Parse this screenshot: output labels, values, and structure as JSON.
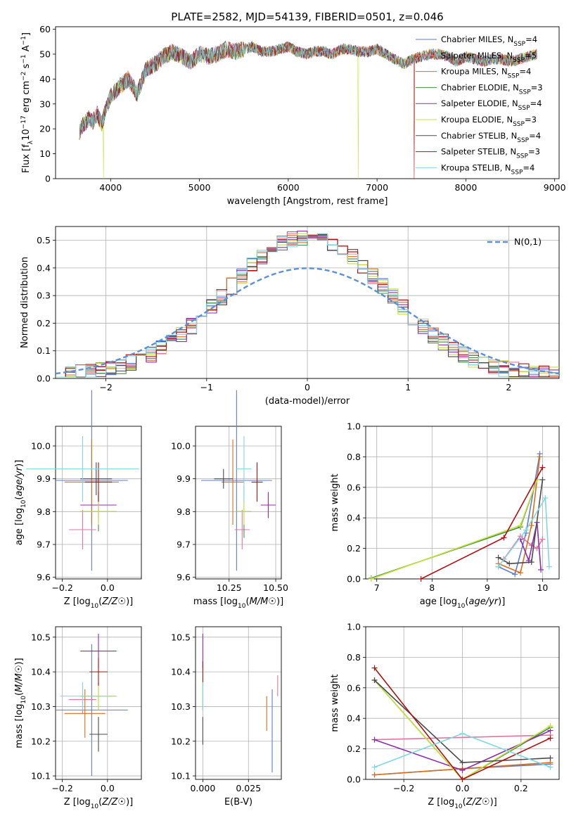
{
  "figure": {
    "title": "PLATE=2582, MJD=54139, FIBERID=0501, z=0.046"
  },
  "models": [
    {
      "name": "Chabrier MILES",
      "nssp": 4,
      "color": "#5b7fcf"
    },
    {
      "name": "Salpeter MILES",
      "nssp": 5,
      "color": "#e5749f"
    },
    {
      "name": "Kroupa MILES",
      "nssp": 4,
      "color": "#d96d1c"
    },
    {
      "name": "Chabrier ELODIE",
      "nssp": 3,
      "color": "#3f8f48"
    },
    {
      "name": "Salpeter ELODIE",
      "nssp": 4,
      "color": "#8e2bb0"
    },
    {
      "name": "Kroupa ELODIE",
      "nssp": 3,
      "color": "#c8e03a"
    },
    {
      "name": "Chabrier STELIB",
      "nssp": 4,
      "color": "#4a4a4a"
    },
    {
      "name": "Salpeter STELIB",
      "nssp": 3,
      "color": "#b01010"
    },
    {
      "name": "Kroupa STELIB",
      "nssp": 4,
      "color": "#7fd8e0"
    }
  ],
  "chart_data": [
    {
      "id": "spectrum",
      "type": "line",
      "xlabel": "wavelength [Angstrom, rest frame]",
      "ylabel": "Flux [f_λ 10^-17 erg cm^-2 s^-1 A^-1]",
      "xlim": [
        3380,
        9050
      ],
      "ylim": [
        0,
        61
      ],
      "xticks": [
        4000,
        5000,
        6000,
        7000,
        8000,
        9000
      ],
      "yticks": [
        0,
        10,
        20,
        30,
        40,
        50,
        60
      ],
      "grid": false,
      "legend": "upper-right",
      "x": [
        3650,
        3700,
        3750,
        3800,
        3850,
        3900,
        3950,
        4000,
        4100,
        4200,
        4300,
        4400,
        4500,
        4600,
        4700,
        4800,
        4900,
        5000,
        5100,
        5200,
        5300,
        5400,
        5500,
        5600,
        5700,
        5800,
        5900,
        6000,
        6100,
        6200,
        6300,
        6400,
        6500,
        6600,
        6700,
        6800,
        6900,
        7000,
        7100,
        7200,
        7300,
        7400,
        7500,
        7600,
        7700,
        7800,
        7900,
        8000,
        8100,
        8200,
        8300,
        8400,
        8500,
        8600,
        8700,
        8800
      ],
      "y": [
        19,
        22,
        24,
        23,
        26,
        22,
        28,
        33,
        37,
        40,
        34,
        44,
        46,
        49,
        51,
        49,
        47,
        50,
        49,
        50,
        52,
        51,
        52,
        53,
        51,
        51,
        52,
        53,
        51,
        50,
        51,
        51,
        50,
        52,
        52,
        51,
        51,
        52,
        50,
        48,
        46,
        48,
        49,
        50,
        50,
        49,
        47,
        49,
        48,
        47,
        48,
        48,
        47,
        48,
        49,
        50
      ],
      "dropouts": [
        {
          "model": "Kroupa ELODIE",
          "x": 3920
        },
        {
          "model": "Kroupa ELODIE",
          "x": 6790
        },
        {
          "model": "Salpeter STELIB",
          "x": 7420
        }
      ]
    },
    {
      "id": "residuals",
      "type": "step-histogram",
      "xlabel": "(data-model)/error",
      "ylabel": "Normed distribution",
      "xlim": [
        -2.5,
        2.5
      ],
      "ylim": [
        0,
        0.55
      ],
      "xticks": [
        -2,
        -1,
        0,
        1,
        2
      ],
      "yticks": [
        0.0,
        0.1,
        0.2,
        0.3,
        0.4,
        0.5
      ],
      "grid": true,
      "legend": "upper-right",
      "reference_label": "N(0,1)",
      "reference_color": "#5b8fd6",
      "bin_edges_start": -2.5,
      "bin_width": 0.1
    },
    {
      "id": "age-vs-Z",
      "type": "errorbar",
      "xlabel": "Z [log10(Z/Z☉)]",
      "ylabel": "age [log10(age/yr)]",
      "xlim": [
        -0.23,
        0.15
      ],
      "ylim": [
        9.595,
        10.06
      ],
      "xticks": [
        -0.2,
        0.0
      ],
      "yticks": [
        9.6,
        9.7,
        9.8,
        9.9,
        10.0
      ],
      "points": [
        {
          "model": "Chabrier MILES",
          "x": -0.07,
          "xerr": 0.16,
          "y": 9.895,
          "yerr": 0.275
        },
        {
          "model": "Salpeter MILES",
          "x": -0.11,
          "xerr": 0.06,
          "y": 9.745,
          "yerr": 0.06
        },
        {
          "model": "Kroupa MILES",
          "x": -0.07,
          "xerr": 0.12,
          "y": 9.89,
          "yerr": 0.13
        },
        {
          "model": "Chabrier ELODIE",
          "x": -0.04,
          "xerr": 0.08,
          "y": 9.8,
          "yerr": 0.06
        },
        {
          "model": "Salpeter ELODIE",
          "x": -0.04,
          "xerr": 0.08,
          "y": 9.82,
          "yerr": 0.04
        },
        {
          "model": "Kroupa ELODIE",
          "x": -0.04,
          "xerr": 0.08,
          "y": 9.8,
          "yerr": 0.04
        },
        {
          "model": "Chabrier STELIB",
          "x": -0.05,
          "xerr": 0.07,
          "y": 9.9,
          "yerr": 0.05
        },
        {
          "model": "Salpeter STELIB",
          "x": -0.04,
          "xerr": 0.06,
          "y": 9.89,
          "yerr": 0.06
        },
        {
          "model": "Kroupa STELIB",
          "x": -0.11,
          "xerr": 0.25,
          "y": 9.93,
          "yerr": 0.1
        }
      ]
    },
    {
      "id": "age-vs-mass",
      "type": "errorbar",
      "xlabel": "mass [log10(M/M☉)]",
      "ylabel": "",
      "xlim": [
        10.07,
        10.53
      ],
      "ylim": [
        9.595,
        10.06
      ],
      "xticks": [
        10.25,
        10.5
      ],
      "yticks": [
        9.6,
        9.7,
        9.8,
        9.9,
        10.0
      ],
      "points": [
        {
          "model": "Chabrier MILES",
          "x": 10.29,
          "xerr": 0.19,
          "y": 9.895,
          "yerr": 0.275
        },
        {
          "model": "Salpeter MILES",
          "x": 10.32,
          "xerr": 0.04,
          "y": 9.745,
          "yerr": 0.06
        },
        {
          "model": "Kroupa MILES",
          "x": 10.27,
          "xerr": 0.06,
          "y": 9.89,
          "yerr": 0.13
        },
        {
          "model": "Chabrier ELODIE",
          "x": 10.33,
          "xerr": 0.04,
          "y": 9.8,
          "yerr": 0.08
        },
        {
          "model": "Salpeter ELODIE",
          "x": 10.46,
          "xerr": 0.04,
          "y": 9.82,
          "yerr": 0.04
        },
        {
          "model": "Kroupa ELODIE",
          "x": 10.33,
          "xerr": 0.04,
          "y": 9.8,
          "yerr": 0.04
        },
        {
          "model": "Chabrier STELIB",
          "x": 10.22,
          "xerr": 0.05,
          "y": 9.9,
          "yerr": 0.03
        },
        {
          "model": "Salpeter STELIB",
          "x": 10.4,
          "xerr": 0.03,
          "y": 9.89,
          "yerr": 0.06
        },
        {
          "model": "Kroupa STELIB",
          "x": 10.33,
          "xerr": 0.04,
          "y": 9.93,
          "yerr": 0.1
        }
      ]
    },
    {
      "id": "weight-vs-age",
      "type": "line",
      "xlabel": "age [log10(age/yr)]",
      "ylabel": "mass weight",
      "xlim": [
        6.8,
        10.3
      ],
      "ylim": [
        0,
        1.0
      ],
      "xticks": [
        7,
        8,
        9,
        10
      ],
      "yticks": [
        0.0,
        0.2,
        0.4,
        0.6,
        0.8,
        1.0
      ],
      "grid": true,
      "series": [
        {
          "model": "Chabrier MILES",
          "x": [
            9.2,
            9.5,
            9.7,
            9.95
          ],
          "y": [
            0.08,
            0.03,
            0.3,
            0.82
          ]
        },
        {
          "model": "Salpeter MILES",
          "x": [
            9.3,
            9.6,
            9.8,
            9.9,
            10.0
          ],
          "y": [
            0.13,
            0.28,
            0.22,
            0.2,
            0.26
          ]
        },
        {
          "model": "Kroupa MILES",
          "x": [
            9.2,
            9.6,
            9.8,
            9.95
          ],
          "y": [
            0.1,
            0.04,
            0.35,
            0.8
          ]
        },
        {
          "model": "Chabrier ELODIE",
          "x": [
            6.9,
            9.6,
            9.9
          ],
          "y": [
            0.005,
            0.34,
            0.65
          ]
        },
        {
          "model": "Salpeter ELODIE",
          "x": [
            9.6,
            9.75,
            9.9,
            9.97
          ],
          "y": [
            0.26,
            0.12,
            0.37,
            0.06
          ]
        },
        {
          "model": "Kroupa ELODIE",
          "x": [
            6.9,
            9.6,
            9.9
          ],
          "y": [
            0.0,
            0.35,
            0.65
          ]
        },
        {
          "model": "Chabrier STELIB",
          "x": [
            9.2,
            9.4,
            9.8,
            10.0
          ],
          "y": [
            0.14,
            0.1,
            0.11,
            0.65
          ]
        },
        {
          "model": "Salpeter STELIB",
          "x": [
            7.8,
            9.3,
            10.0
          ],
          "y": [
            0.0,
            0.27,
            0.73
          ]
        },
        {
          "model": "Kroupa STELIB",
          "x": [
            9.2,
            9.7,
            10.05,
            10.12
          ],
          "y": [
            0.08,
            0.32,
            0.53,
            0.08
          ]
        }
      ]
    },
    {
      "id": "mass-vs-Z",
      "type": "errorbar",
      "xlabel": "Z [log10(Z/Z☉)]",
      "ylabel": "mass [log10(M/M☉)]",
      "xlim": [
        -0.23,
        0.15
      ],
      "ylim": [
        10.09,
        10.53
      ],
      "xticks": [
        -0.2,
        0.0
      ],
      "yticks": [
        10.1,
        10.2,
        10.3,
        10.4,
        10.5
      ],
      "points": [
        {
          "model": "Chabrier MILES",
          "x": -0.07,
          "xerr": 0.16,
          "y": 10.29,
          "yerr": 0.19
        },
        {
          "model": "Salpeter MILES",
          "x": -0.11,
          "xerr": 0.06,
          "y": 10.32,
          "yerr": 0.04
        },
        {
          "model": "Kroupa MILES",
          "x": -0.1,
          "xerr": 0.09,
          "y": 10.28,
          "yerr": 0.07
        },
        {
          "model": "Chabrier ELODIE",
          "x": -0.04,
          "xerr": 0.08,
          "y": 10.33,
          "yerr": 0.04
        },
        {
          "model": "Salpeter ELODIE",
          "x": -0.04,
          "xerr": 0.08,
          "y": 10.46,
          "yerr": 0.05
        },
        {
          "model": "Kroupa ELODIE",
          "x": -0.04,
          "xerr": 0.08,
          "y": 10.33,
          "yerr": 0.04
        },
        {
          "model": "Chabrier STELIB",
          "x": -0.04,
          "xerr": 0.04,
          "y": 10.22,
          "yerr": 0.05
        },
        {
          "model": "Salpeter STELIB",
          "x": -0.04,
          "xerr": 0.04,
          "y": 10.4,
          "yerr": 0.04
        },
        {
          "model": "Kroupa STELIB",
          "x": -0.11,
          "xerr": 0.1,
          "y": 10.33,
          "yerr": 0.04
        }
      ]
    },
    {
      "id": "mass-vs-ebv",
      "type": "errorbar",
      "xlabel": "E(B-V)",
      "ylabel": "",
      "xlim": [
        -0.004,
        0.043
      ],
      "ylim": [
        10.09,
        10.53
      ],
      "xticks": [
        0.0,
        0.025
      ],
      "yticks": [
        10.1,
        10.2,
        10.3,
        10.4,
        10.5
      ],
      "points": [
        {
          "model": "Chabrier MILES",
          "x": 0.038,
          "xerr": 0,
          "y": 10.23,
          "yerr": 0.12
        },
        {
          "model": "Salpeter MILES",
          "x": 0.041,
          "xerr": 0,
          "y": 10.36,
          "yerr": 0.03
        },
        {
          "model": "Kroupa MILES",
          "x": 0.035,
          "xerr": 0,
          "y": 10.28,
          "yerr": 0.05
        },
        {
          "model": "Chabrier ELODIE",
          "x": 0.0,
          "xerr": 0,
          "y": 10.33,
          "yerr": 0.04
        },
        {
          "model": "Salpeter ELODIE",
          "x": 0.0,
          "xerr": 0,
          "y": 10.46,
          "yerr": 0.05
        },
        {
          "model": "Kroupa ELODIE",
          "x": 0.0,
          "xerr": 0,
          "y": 10.33,
          "yerr": 0.04
        },
        {
          "model": "Chabrier STELIB",
          "x": 0.0,
          "xerr": 0,
          "y": 10.23,
          "yerr": 0.04
        },
        {
          "model": "Salpeter STELIB",
          "x": 0.0,
          "xerr": 0,
          "y": 10.4,
          "yerr": 0.03
        },
        {
          "model": "Kroupa STELIB",
          "x": 0.0,
          "xerr": 0,
          "y": 10.33,
          "yerr": 0.04
        }
      ]
    },
    {
      "id": "weight-vs-Z",
      "type": "line",
      "xlabel": "Z [log10(Z/Z☉)]",
      "ylabel": "mass weight",
      "xlim": [
        -0.33,
        0.33
      ],
      "ylim": [
        0,
        1.0
      ],
      "xticks": [
        -0.2,
        0.0,
        0.2
      ],
      "yticks": [
        0.0,
        0.2,
        0.4,
        0.6,
        0.8,
        1.0
      ],
      "grid": true,
      "series": [
        {
          "model": "Chabrier MILES",
          "x": [
            -0.3,
            0.0,
            0.3
          ],
          "y": [
            0.03,
            0.07,
            0.1
          ]
        },
        {
          "model": "Salpeter MILES",
          "x": [
            -0.3,
            0.3
          ],
          "y": [
            0.26,
            0.29
          ]
        },
        {
          "model": "Kroupa MILES",
          "x": [
            -0.3,
            0.0,
            0.3
          ],
          "y": [
            0.03,
            0.07,
            0.11
          ]
        },
        {
          "model": "Chabrier ELODIE",
          "x": [
            -0.3,
            0.0,
            0.3
          ],
          "y": [
            0.65,
            0.0,
            0.34
          ]
        },
        {
          "model": "Salpeter ELODIE",
          "x": [
            -0.3,
            0.0,
            0.3
          ],
          "y": [
            0.26,
            0.06,
            0.32
          ]
        },
        {
          "model": "Kroupa ELODIE",
          "x": [
            -0.3,
            0.0,
            0.3
          ],
          "y": [
            0.65,
            0.0,
            0.35
          ]
        },
        {
          "model": "Chabrier STELIB",
          "x": [
            -0.3,
            0.0,
            0.3
          ],
          "y": [
            0.65,
            0.11,
            0.14
          ]
        },
        {
          "model": "Salpeter STELIB",
          "x": [
            -0.3,
            0.0,
            0.3
          ],
          "y": [
            0.73,
            0.0,
            0.27
          ]
        },
        {
          "model": "Kroupa STELIB",
          "x": [
            -0.3,
            0.0,
            0.3
          ],
          "y": [
            0.08,
            0.3,
            0.08
          ]
        }
      ]
    }
  ]
}
